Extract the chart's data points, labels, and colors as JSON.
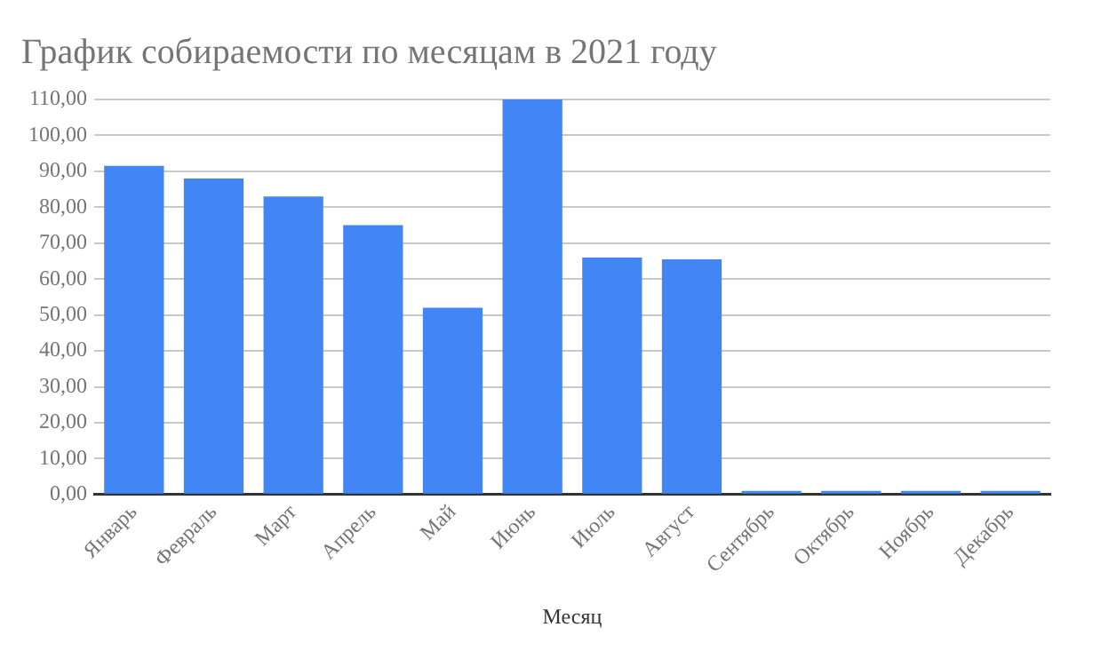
{
  "chart_data": {
    "type": "bar",
    "title": "График собираемости по месяцам в 2021 году",
    "xlabel": "Месяц",
    "categories": [
      "Январь",
      "Февраль",
      "Март",
      "Апрель",
      "Май",
      "Июнь",
      "Июль",
      "Август",
      "Сентябрь",
      "Октябрь",
      "Ноябрь",
      "Декабрь"
    ],
    "values": [
      91.5,
      88,
      83,
      75,
      52,
      110,
      66,
      65.5,
      1,
      1,
      1,
      1
    ],
    "color": "#4285f4",
    "ylim": [
      0,
      110
    ],
    "yticks": [
      {
        "value": 0,
        "label": "0,00"
      },
      {
        "value": 10,
        "label": "10,00"
      },
      {
        "value": 20,
        "label": "20,00"
      },
      {
        "value": 30,
        "label": "30,00"
      },
      {
        "value": 40,
        "label": "40,00"
      },
      {
        "value": 50,
        "label": "50,00"
      },
      {
        "value": 60,
        "label": "60,00"
      },
      {
        "value": 70,
        "label": "70,00"
      },
      {
        "value": 80,
        "label": "80,00"
      },
      {
        "value": 90,
        "label": "90,00"
      },
      {
        "value": 100,
        "label": "100,00"
      },
      {
        "value": 110,
        "label": "110,00"
      }
    ],
    "grid": "y",
    "legend": false
  }
}
